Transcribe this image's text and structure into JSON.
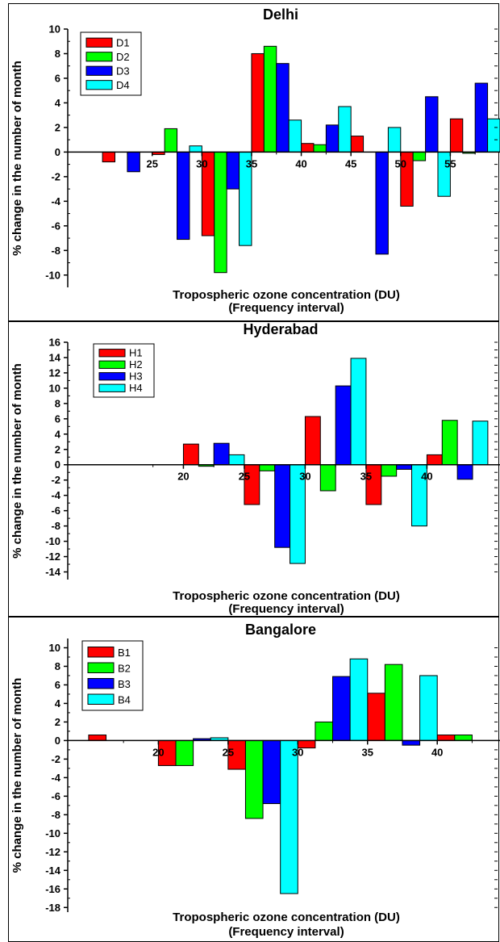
{
  "chart_data": [
    {
      "type": "bar",
      "title": "Delhi",
      "xlabel_line1": "Tropospheric ozone concentration (DU)",
      "xlabel_line2": "(Frequency interval)",
      "ylabel": "% change in the number of month",
      "xlim": [
        16.5,
        60
      ],
      "ylim": [
        -11,
        10
      ],
      "xticks": [
        25,
        30,
        35,
        40,
        45,
        50,
        55
      ],
      "yticks": [
        -10,
        -8,
        -6,
        -4,
        -2,
        0,
        2,
        4,
        6,
        8,
        10
      ],
      "group_width": 5,
      "legend_position": "top-left",
      "colors": [
        "#ff0000",
        "#00ff00",
        "#0000ff",
        "#00ffff"
      ],
      "x": [
        20,
        25,
        30,
        35,
        40,
        45,
        50,
        55
      ],
      "series": [
        {
          "name": "D1",
          "values": [
            -0.8,
            -0.2,
            -6.8,
            8.0,
            0.7,
            1.3,
            -4.4,
            2.7
          ]
        },
        {
          "name": "D2",
          "values": [
            0,
            1.9,
            -9.8,
            8.6,
            0.6,
            0,
            -0.7,
            -0.1
          ]
        },
        {
          "name": "D3",
          "values": [
            -1.6,
            -7.1,
            -3.0,
            7.2,
            2.2,
            -8.3,
            4.5,
            5.6
          ]
        },
        {
          "name": "D4",
          "values": [
            0,
            0.5,
            -7.6,
            2.6,
            3.7,
            2.0,
            -3.6,
            2.7
          ]
        }
      ]
    },
    {
      "type": "bar",
      "title": "Hyderabad",
      "xlabel_line1": "Tropospheric ozone concentration (DU)",
      "xlabel_line2": "(Frequency interval)",
      "ylabel": "% change in the number of month",
      "xlim": [
        10.5,
        46
      ],
      "ylim": [
        -15,
        16
      ],
      "xticks": [
        20,
        25,
        30,
        35,
        40
      ],
      "yticks": [
        -14,
        -12,
        -10,
        -8,
        -6,
        -4,
        -2,
        0,
        2,
        4,
        6,
        8,
        10,
        12,
        14,
        16
      ],
      "group_width": 5,
      "legend_position": "top-left",
      "colors": [
        "#ff0000",
        "#00ff00",
        "#0000ff",
        "#00ffff"
      ],
      "x": [
        20,
        25,
        30,
        35,
        40
      ],
      "series": [
        {
          "name": "H1",
          "values": [
            2.7,
            -5.2,
            6.3,
            -5.2,
            1.3
          ]
        },
        {
          "name": "H2",
          "values": [
            -0.2,
            -0.8,
            -3.4,
            -1.5,
            5.8
          ]
        },
        {
          "name": "H3",
          "values": [
            2.8,
            -10.8,
            10.3,
            -0.6,
            -1.9
          ]
        },
        {
          "name": "H4",
          "values": [
            1.3,
            -12.9,
            13.9,
            -8.0,
            5.7
          ]
        }
      ]
    },
    {
      "type": "bar",
      "title": "Bangalore",
      "xlabel_line1": "Tropospheric ozone concentration (DU)",
      "xlabel_line2": "(Frequency interval)",
      "ylabel": "% change in the number of month",
      "xlim": [
        13.5,
        44.5
      ],
      "ylim": [
        -18.5,
        11
      ],
      "xticks": [
        20,
        25,
        30,
        35,
        40
      ],
      "yticks": [
        -18,
        -16,
        -14,
        -12,
        -10,
        -8,
        -6,
        -4,
        -2,
        0,
        2,
        4,
        6,
        8,
        10
      ],
      "group_width": 5,
      "legend_position": "top-left",
      "colors": [
        "#ff0000",
        "#00ff00",
        "#0000ff",
        "#00ffff"
      ],
      "x": [
        15,
        20,
        25,
        30,
        35,
        40
      ],
      "series": [
        {
          "name": "B1",
          "values": [
            0.6,
            -2.7,
            -3.1,
            -0.8,
            5.1,
            0.6
          ]
        },
        {
          "name": "B2",
          "values": [
            0,
            -2.7,
            -8.4,
            2.0,
            8.2,
            0.6
          ]
        },
        {
          "name": "B3",
          "values": [
            0,
            0.2,
            -6.8,
            6.9,
            -0.5,
            0
          ]
        },
        {
          "name": "B4",
          "values": [
            0,
            0.3,
            -16.5,
            8.8,
            7.0,
            0
          ]
        }
      ]
    }
  ]
}
